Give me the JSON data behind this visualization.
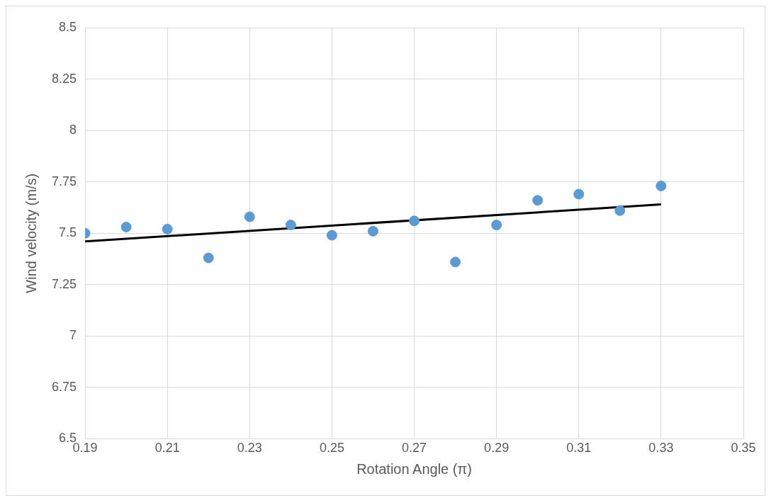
{
  "chart_data": {
    "type": "scatter",
    "xlabel": "Rotation Angle (π)",
    "ylabel": "Wind velocity (m/s)",
    "x": [
      0.19,
      0.2,
      0.21,
      0.22,
      0.23,
      0.24,
      0.25,
      0.26,
      0.27,
      0.28,
      0.29,
      0.3,
      0.31,
      0.32,
      0.33
    ],
    "series": [
      {
        "color": "#5b9bd5",
        "marker": "circle",
        "values": [
          7.5,
          7.53,
          7.52,
          7.38,
          7.58,
          7.54,
          7.49,
          7.51,
          7.56,
          7.36,
          7.54,
          7.66,
          7.69,
          7.61,
          7.73
        ]
      },
      {
        "type": "line",
        "color": "#000000",
        "x": [
          0.19,
          0.33
        ],
        "values": [
          7.46,
          7.64
        ]
      }
    ],
    "xlim": [
      0.19,
      0.35
    ],
    "xticks": [
      0.19,
      0.21,
      0.23,
      0.25,
      0.27,
      0.29,
      0.31,
      0.33,
      0.35
    ],
    "ylim": [
      6.5,
      8.5
    ],
    "yticks": [
      6.5,
      6.75,
      7,
      7.25,
      7.5,
      7.75,
      8,
      8.25,
      8.5
    ],
    "grid": true,
    "legend": false
  }
}
